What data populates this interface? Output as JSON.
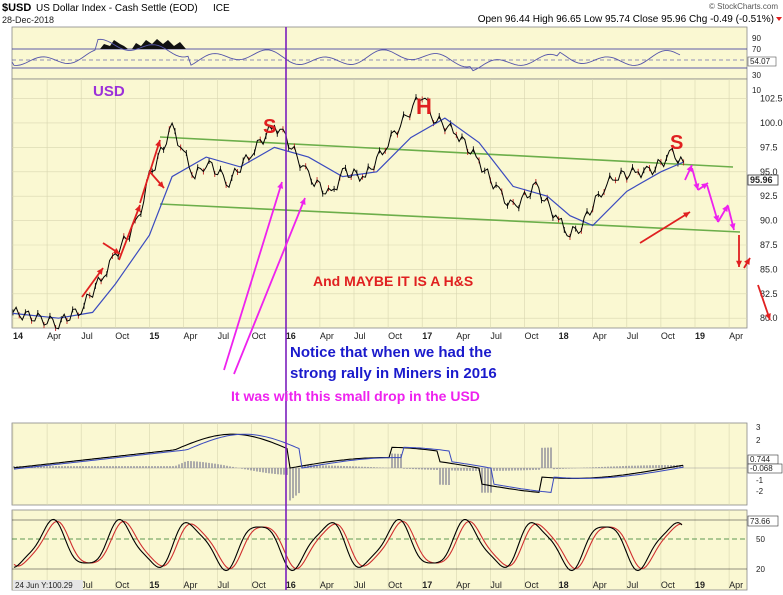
{
  "header": {
    "symbol": "$USD",
    "name": "US Dollar Index - Cash Settle (EOD)",
    "exchange": "ICE",
    "date": "28-Dec-2018",
    "watermark": "© StockCharts.com",
    "ohlc": "Open 96.44  High 96.65  Low 95.74  Close 95.96  Chg -0.49 (-0.51%)"
  },
  "colors": {
    "panel_bg": "#FAF8D2",
    "price": "#000000",
    "ma": "#3b4bbf",
    "channel": "#6cae4a",
    "divider": "#7b1fbd",
    "red_annotation": "#e02020",
    "magenta_annotation": "#ee22ee",
    "blue_annotation": "#1a1acc",
    "usd_label": "#9b30d9",
    "rsi_line": "#5555aa",
    "stoch_fast": "#000000",
    "stoch_slow": "#d03030"
  },
  "chart_data": {
    "type": "line",
    "title": "$USD US Dollar Index - Cash Settle (EOD) ICE",
    "x_range": [
      "2014-01",
      "2019-06"
    ],
    "time_labels": [
      "14",
      "Apr",
      "Jul",
      "Oct",
      "15",
      "Apr",
      "Jul",
      "Oct",
      "16",
      "Apr",
      "Jul",
      "Oct",
      "17",
      "Apr",
      "Jul",
      "Oct",
      "18",
      "Apr",
      "Jul",
      "Oct",
      "19",
      "Apr"
    ],
    "price_panel": {
      "y_ticks": [
        "102.5",
        "100.0",
        "97.5",
        "95.0",
        "92.5",
        "90.0",
        "87.5",
        "85.0",
        "82.5",
        "80.0"
      ],
      "ylim": [
        79,
        104.5
      ],
      "last_value": "95.96",
      "series": [
        {
          "date": "2014-01",
          "value": 80.6
        },
        {
          "date": "2014-04",
          "value": 79.8
        },
        {
          "date": "2014-05",
          "value": 79.5
        },
        {
          "date": "2014-07",
          "value": 81.0
        },
        {
          "date": "2014-09",
          "value": 84.5
        },
        {
          "date": "2014-10",
          "value": 86.5
        },
        {
          "date": "2014-12",
          "value": 90.0
        },
        {
          "date": "2015-01",
          "value": 94.5
        },
        {
          "date": "2015-03",
          "value": 99.5
        },
        {
          "date": "2015-04",
          "value": 97.0
        },
        {
          "date": "2015-05",
          "value": 94.5
        },
        {
          "date": "2015-06",
          "value": 96.0
        },
        {
          "date": "2015-08",
          "value": 94.0
        },
        {
          "date": "2015-10",
          "value": 97.0
        },
        {
          "date": "2015-12",
          "value": 99.8
        },
        {
          "date": "2016-01",
          "value": 98.5
        },
        {
          "date": "2016-03",
          "value": 94.5
        },
        {
          "date": "2016-05",
          "value": 92.5
        },
        {
          "date": "2016-06",
          "value": 95.0
        },
        {
          "date": "2016-08",
          "value": 94.5
        },
        {
          "date": "2016-10",
          "value": 98.0
        },
        {
          "date": "2017-01",
          "value": 103.0
        },
        {
          "date": "2017-02",
          "value": 100.5
        },
        {
          "date": "2017-04",
          "value": 99.0
        },
        {
          "date": "2017-06",
          "value": 96.0
        },
        {
          "date": "2017-08",
          "value": 92.5
        },
        {
          "date": "2017-09",
          "value": 91.3
        },
        {
          "date": "2017-11",
          "value": 93.5
        },
        {
          "date": "2018-01",
          "value": 90.0
        },
        {
          "date": "2018-02",
          "value": 88.6
        },
        {
          "date": "2018-03",
          "value": 89.5
        },
        {
          "date": "2018-05",
          "value": 93.5
        },
        {
          "date": "2018-06",
          "value": 94.5
        },
        {
          "date": "2018-08",
          "value": 95.0
        },
        {
          "date": "2018-09",
          "value": 95.0
        },
        {
          "date": "2018-11",
          "value": 96.8
        },
        {
          "date": "2018-12",
          "value": 95.96
        }
      ],
      "moving_average": [
        {
          "date": "2014-01",
          "value": 80.5
        },
        {
          "date": "2014-05",
          "value": 80.0
        },
        {
          "date": "2014-08",
          "value": 80.6
        },
        {
          "date": "2014-10",
          "value": 83.5
        },
        {
          "date": "2015-01",
          "value": 88.5
        },
        {
          "date": "2015-03",
          "value": 94.5
        },
        {
          "date": "2015-06",
          "value": 96.5
        },
        {
          "date": "2015-09",
          "value": 95.5
        },
        {
          "date": "2015-12",
          "value": 97.5
        },
        {
          "date": "2016-03",
          "value": 96.5
        },
        {
          "date": "2016-06",
          "value": 94.5
        },
        {
          "date": "2016-09",
          "value": 95.0
        },
        {
          "date": "2016-12",
          "value": 98.5
        },
        {
          "date": "2017-03",
          "value": 100.5
        },
        {
          "date": "2017-06",
          "value": 98.0
        },
        {
          "date": "2017-09",
          "value": 93.5
        },
        {
          "date": "2017-12",
          "value": 92.5
        },
        {
          "date": "2018-02",
          "value": 90.5
        },
        {
          "date": "2018-04",
          "value": 89.5
        },
        {
          "date": "2018-07",
          "value": 93.0
        },
        {
          "date": "2018-10",
          "value": 95.0
        },
        {
          "date": "2018-12",
          "value": 96.0
        }
      ]
    },
    "rsi_panel": {
      "y_ticks": [
        "90",
        "70",
        "54.07",
        "30",
        "10"
      ],
      "last_value": "54.07"
    },
    "macd_panel": {
      "y_ticks": [
        "3",
        "2",
        "0.744",
        "-0.068",
        "-1",
        "-2"
      ],
      "last_values": [
        "0.744",
        "-0.068"
      ]
    },
    "stoch_panel": {
      "y_ticks": [
        "73.66",
        "50",
        "20"
      ],
      "last_value": "73.66"
    },
    "corner_label": "24 Jun Y:100.29",
    "annotations": [
      {
        "text": "USD",
        "color": "purple"
      },
      {
        "text": "S",
        "color": "red"
      },
      {
        "text": "H",
        "color": "red"
      },
      {
        "text": "S",
        "color": "red"
      },
      {
        "text": "And MAYBE IT IS A H&S",
        "color": "red"
      },
      {
        "text": "Notice that when we had the",
        "color": "blue"
      },
      {
        "text": "strong rally in Miners in 2016",
        "color": "blue"
      },
      {
        "text": "It was with this small drop in the USD",
        "color": "magenta"
      }
    ]
  }
}
